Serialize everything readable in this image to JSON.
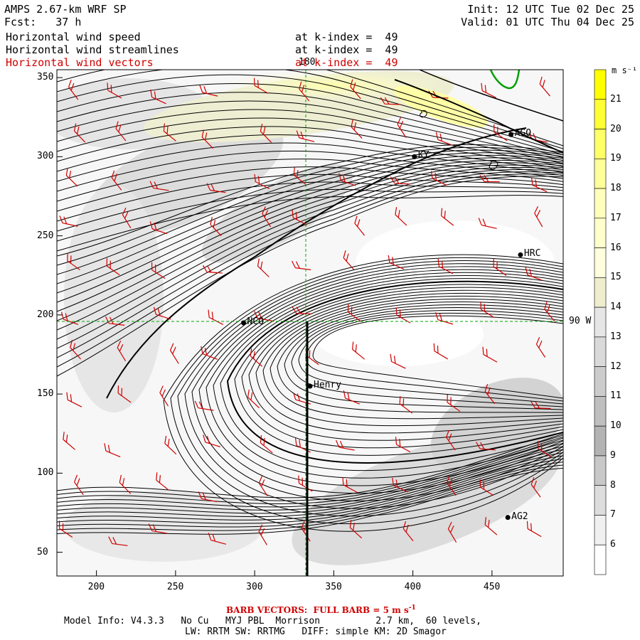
{
  "header": {
    "model": "AMPS 2.67-km WRF SP",
    "forecast": "Fcst:   37 h",
    "init": "Init: 12 UTC Tue 02 Dec 25",
    "valid": "Valid: 01 UTC Thu 04 Dec 25"
  },
  "fields": [
    {
      "label": "Horizontal wind speed",
      "level": "at k-index =  49",
      "color": "#000000"
    },
    {
      "label": "Horizontal wind streamlines",
      "level": "at k-index =  49",
      "color": "#000000"
    },
    {
      "label": "Horizontal wind vectors",
      "level": "at k-index =  49",
      "color": "#d00000"
    }
  ],
  "axes": {
    "x_ticks": [
      "200",
      "250",
      "300",
      "350",
      "400",
      "450"
    ],
    "y_ticks": [
      "350",
      "300",
      "250",
      "200",
      "150",
      "100",
      "50"
    ]
  },
  "grid_labels": {
    "meridian": "180",
    "parallel": "90 W"
  },
  "stations": [
    {
      "name": "NCO",
      "x": 293,
      "y": 195
    },
    {
      "name": "Henry",
      "x": 335,
      "y": 155
    },
    {
      "name": "HRC",
      "x": 468,
      "y": 238
    },
    {
      "name": "AG2",
      "x": 460,
      "y": 72
    },
    {
      "name": "AGO",
      "x": 462,
      "y": 314
    },
    {
      "name": "KY",
      "x": 401,
      "y": 300
    }
  ],
  "colorbar": {
    "unit": "m s⁻¹",
    "levels": [
      "21",
      "20",
      "19",
      "18",
      "17",
      "16",
      "15",
      "14",
      "13",
      "12",
      "11",
      "10",
      "9",
      "8",
      "7",
      "6"
    ],
    "colors": [
      "#ffff00",
      "#ffff33",
      "#ffff66",
      "#ffff99",
      "#ffffbb",
      "#ffffcc",
      "#ffffdd",
      "#eeeecc",
      "#e6e6e6",
      "#d9d9d9",
      "#cccccc",
      "#bfbfbf",
      "#b3b3b3",
      "#c8c8c8",
      "#dddddd",
      "#f0f0f0",
      "#ffffff"
    ]
  },
  "footer": {
    "barb_note": "BARB VECTORS:  FULL BARB = 5 m s",
    "barb_exp": "-1",
    "model_info": "Model Info: V4.3.3   No Cu   MYJ PBL  Morrison          2.7 km,  60 levels,",
    "physics": "LW: RRTM SW: RRTMG   DIFF: simple KM: 2D Smagor"
  }
}
